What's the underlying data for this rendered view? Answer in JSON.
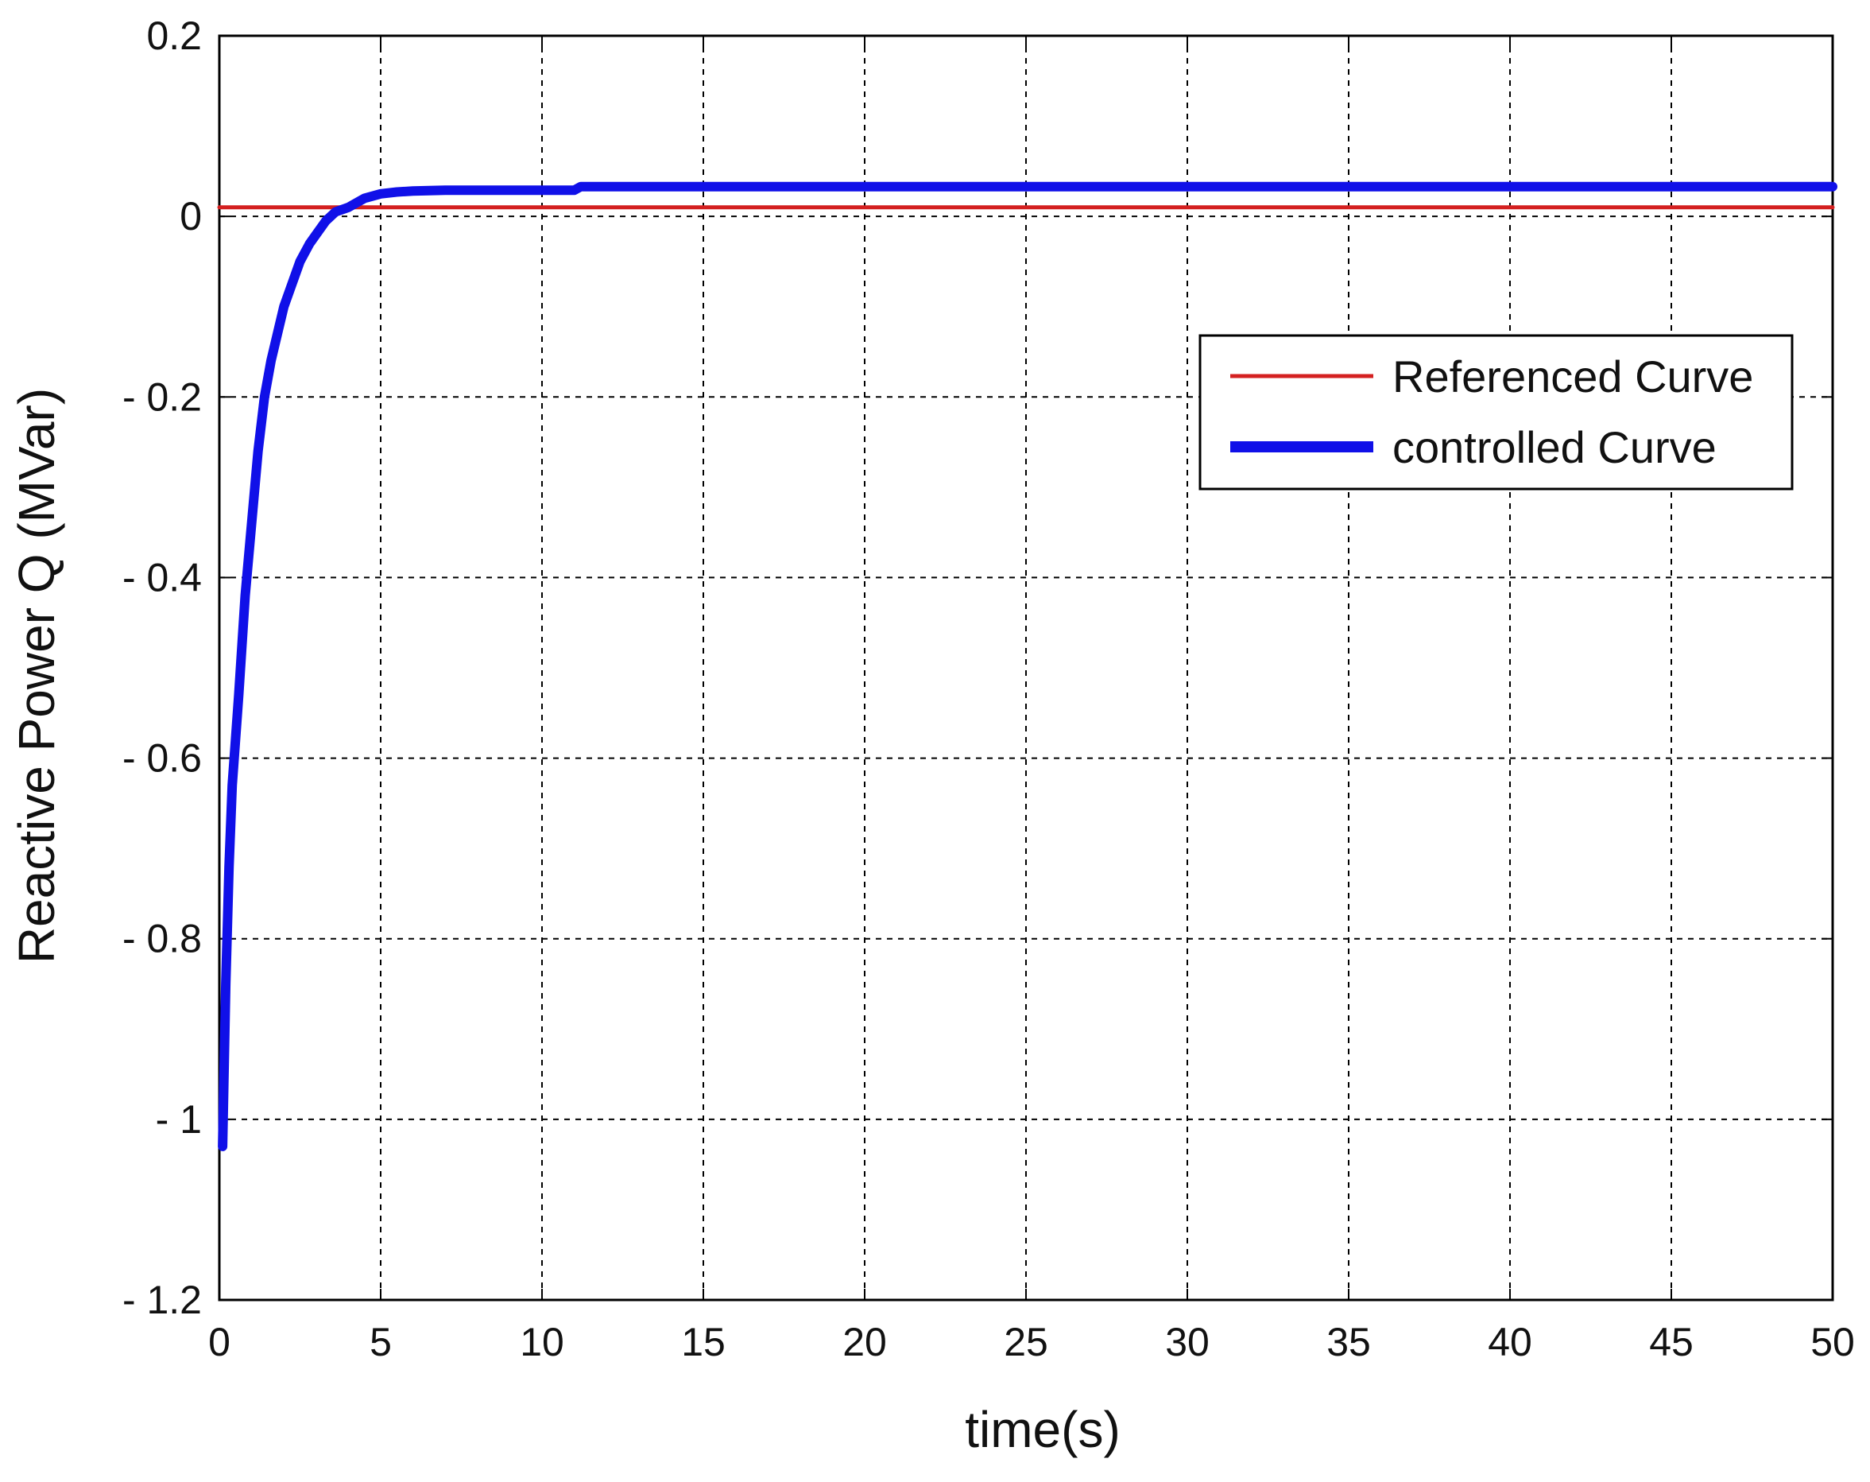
{
  "chart_data": {
    "type": "line",
    "title": "",
    "xlabel": "time(s)",
    "ylabel": "Reactive Power Q (MVar)",
    "xlim": [
      0,
      50
    ],
    "ylim": [
      -1.2,
      0.2
    ],
    "x_ticks": [
      0,
      5,
      10,
      15,
      20,
      25,
      30,
      35,
      40,
      45,
      50
    ],
    "x_tick_labels": [
      "0",
      "5",
      "10",
      "15",
      "20",
      "25",
      "30",
      "35",
      "40",
      "45",
      "50"
    ],
    "y_ticks": [
      0.2,
      0,
      -0.2,
      -0.4,
      -0.6,
      -0.8,
      -1,
      -1.2
    ],
    "y_tick_labels": [
      "0.2",
      "0",
      "- 0.2",
      "- 0.4",
      "- 0.6",
      "- 0.8",
      "- 1",
      "- 1.2"
    ],
    "grid": true,
    "legend_position": "top-right",
    "series": [
      {
        "name": "Referenced Curve",
        "color": "#d42020",
        "x": [
          0,
          50
        ],
        "y": [
          0.01,
          0.01
        ]
      },
      {
        "name": "controlled Curve",
        "color": "#1010e8",
        "x": [
          0.1,
          0.2,
          0.3,
          0.4,
          0.5,
          0.6,
          0.8,
          1.0,
          1.2,
          1.4,
          1.6,
          1.8,
          2.0,
          2.2,
          2.5,
          2.8,
          3.0,
          3.3,
          3.6,
          4.0,
          4.5,
          5.0,
          5.5,
          6.0,
          7.0,
          8.0,
          10.0,
          11.0,
          11.2,
          12.0,
          15.0,
          20.0,
          25.0,
          30.0,
          35.0,
          40.0,
          45.0,
          50.0
        ],
        "y": [
          -1.03,
          -0.85,
          -0.72,
          -0.63,
          -0.58,
          -0.53,
          -0.42,
          -0.34,
          -0.26,
          -0.2,
          -0.16,
          -0.13,
          -0.1,
          -0.08,
          -0.05,
          -0.03,
          -0.02,
          -0.005,
          0.005,
          0.01,
          0.02,
          0.025,
          0.027,
          0.028,
          0.029,
          0.029,
          0.029,
          0.029,
          0.033,
          0.033,
          0.033,
          0.033,
          0.033,
          0.033,
          0.033,
          0.033,
          0.033,
          0.033
        ]
      }
    ]
  }
}
